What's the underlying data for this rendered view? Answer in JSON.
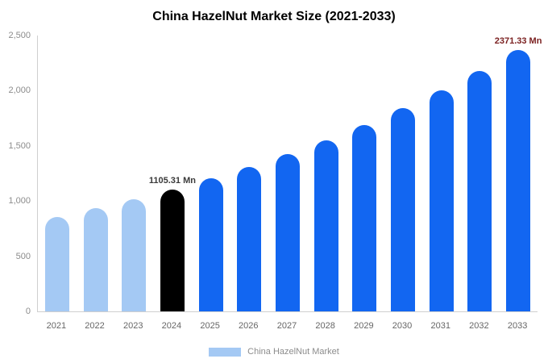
{
  "title": "China HazelNut Market Size (2021-2033)",
  "colors": {
    "light_blue": "#A4C9F4",
    "blue": "#1266F1",
    "black": "#000000",
    "axis_line": "#CFCFCF",
    "tick_label": "#8C8C8C",
    "x_label": "#666666",
    "annotation_2024": "#3A3A3A",
    "annotation_2033": "#7B2121"
  },
  "legend": {
    "label": "China HazelNut Market",
    "swatch_color": "#A4C9F4"
  },
  "chart_data": {
    "type": "bar",
    "title": "China HazelNut Market Size (2021-2033)",
    "categories": [
      "2021",
      "2022",
      "2023",
      "2024",
      "2025",
      "2026",
      "2027",
      "2028",
      "2029",
      "2030",
      "2031",
      "2032",
      "2033"
    ],
    "values": [
      857,
      933,
      1015,
      1105.31,
      1203,
      1310,
      1425,
      1552,
      1689,
      1839,
      2001,
      2178,
      2371.33
    ],
    "bar_colors": [
      "#A4C9F4",
      "#A4C9F4",
      "#A4C9F4",
      "#000000",
      "#1266F1",
      "#1266F1",
      "#1266F1",
      "#1266F1",
      "#1266F1",
      "#1266F1",
      "#1266F1",
      "#1266F1",
      "#1266F1"
    ],
    "annotations": [
      {
        "category": "2024",
        "text": "1105.31 Mn",
        "color": "#3A3A3A"
      },
      {
        "category": "2033",
        "text": "2371.33 Mn",
        "color": "#7B2121"
      }
    ],
    "xlabel": "",
    "ylabel": "",
    "ylim": [
      0,
      2500
    ],
    "yticks": [
      "0",
      "500",
      "1,000",
      "1,500",
      "2,000",
      "2,500"
    ],
    "grid": false,
    "legend_position": "bottom",
    "legend_entries": [
      "China HazelNut Market"
    ]
  }
}
